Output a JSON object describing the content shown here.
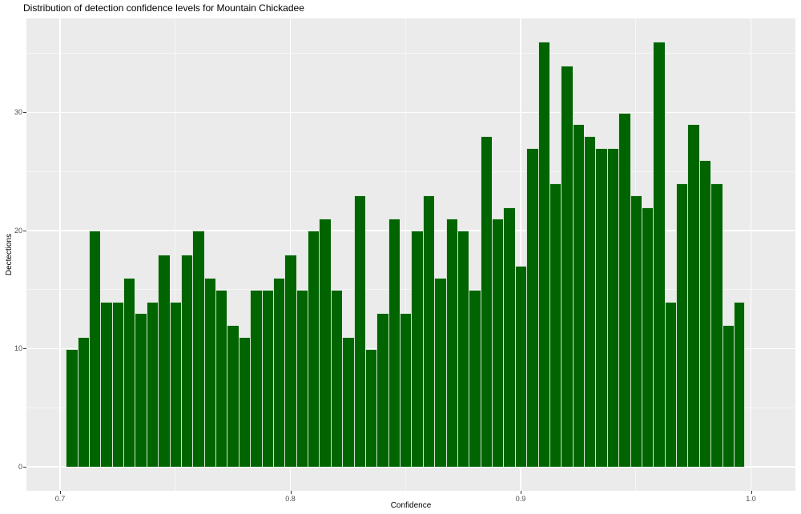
{
  "title": "Distribution of detection confidence levels for Mountain Chickadee",
  "chart_data": {
    "type": "bar",
    "subtype": "histogram",
    "title": "Distribution of detection confidence levels for Mountain Chickadee",
    "xlabel": "Confidence",
    "ylabel": "Dectections",
    "bin_start": 0.7025,
    "bin_width": 0.005,
    "counts": [
      10,
      11,
      20,
      14,
      14,
      16,
      13,
      14,
      18,
      14,
      18,
      20,
      16,
      15,
      12,
      11,
      15,
      15,
      16,
      18,
      15,
      20,
      21,
      15,
      11,
      23,
      10,
      13,
      21,
      13,
      20,
      23,
      16,
      21,
      20,
      15,
      28,
      21,
      22,
      17,
      27,
      36,
      24,
      34,
      29,
      28,
      27,
      27,
      30,
      23,
      22,
      36,
      14,
      24,
      29,
      26,
      24,
      12,
      14
    ],
    "x_ticks": [
      0.7,
      0.8,
      0.9,
      1.0
    ],
    "x_tick_labels": [
      "0.7",
      "0.8",
      "0.9",
      "1.0"
    ],
    "x_minor_ticks": [
      0.75,
      0.85,
      0.95
    ],
    "y_ticks": [
      0,
      10,
      20,
      30
    ],
    "y_tick_labels": [
      "0",
      "10",
      "20",
      "30"
    ],
    "y_minor_ticks": [
      5,
      15,
      25,
      35
    ],
    "xlim": [
      0.685391,
      1.019304
    ],
    "ylim": [
      -2.034,
      37.966
    ],
    "legend": "none",
    "grid": "on",
    "colors": {
      "bar_fill": "#006400",
      "bar_stroke": "rgba(248,252,246,0.85)",
      "panel_background": "#ebebeb",
      "figure_background": "#ffffff",
      "grid_major": "#ffffff",
      "axis_text": "#4d4d4d",
      "tick_mark": "#333333",
      "title_text": "#000000"
    }
  }
}
